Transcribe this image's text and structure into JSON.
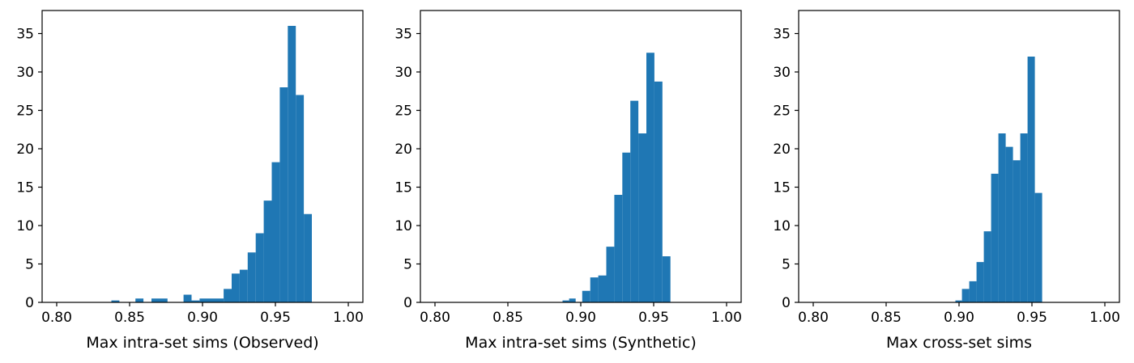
{
  "chart_data": [
    {
      "type": "bar",
      "xlabel": "Max intra-set sims (Observed)",
      "ylabel": "",
      "xlim": [
        0.79,
        1.01
      ],
      "ylim": [
        0,
        38
      ],
      "grid": false,
      "color": "#1f77b4",
      "xticks": [
        {
          "v": 0.8,
          "label": "0.80"
        },
        {
          "v": 0.85,
          "label": "0.85"
        },
        {
          "v": 0.9,
          "label": "0.90"
        },
        {
          "v": 0.95,
          "label": "0.95"
        },
        {
          "v": 1.0,
          "label": "1.00"
        }
      ],
      "yticks": [
        {
          "v": 0,
          "label": "0"
        },
        {
          "v": 5,
          "label": "5"
        },
        {
          "v": 10,
          "label": "10"
        },
        {
          "v": 15,
          "label": "15"
        },
        {
          "v": 20,
          "label": "20"
        },
        {
          "v": 25,
          "label": "25"
        },
        {
          "v": 30,
          "label": "30"
        },
        {
          "v": 35,
          "label": "35"
        }
      ],
      "bins": [
        {
          "x0": 0.8375,
          "x1": 0.843,
          "value": 0.25
        },
        {
          "x0": 0.854,
          "x1": 0.8595,
          "value": 0.5
        },
        {
          "x0": 0.865,
          "x1": 0.876,
          "value": 0.5
        },
        {
          "x0": 0.887,
          "x1": 0.8925,
          "value": 1.0
        },
        {
          "x0": 0.8925,
          "x1": 0.898,
          "value": 0.25
        },
        {
          "x0": 0.898,
          "x1": 0.9145,
          "value": 0.5
        },
        {
          "x0": 0.9145,
          "x1": 0.92,
          "value": 1.75
        },
        {
          "x0": 0.92,
          "x1": 0.9255,
          "value": 3.75
        },
        {
          "x0": 0.9255,
          "x1": 0.931,
          "value": 4.25
        },
        {
          "x0": 0.931,
          "x1": 0.9365,
          "value": 6.5
        },
        {
          "x0": 0.9365,
          "x1": 0.942,
          "value": 9.0
        },
        {
          "x0": 0.942,
          "x1": 0.9475,
          "value": 13.25
        },
        {
          "x0": 0.9475,
          "x1": 0.953,
          "value": 18.25
        },
        {
          "x0": 0.953,
          "x1": 0.9585,
          "value": 28.0
        },
        {
          "x0": 0.9585,
          "x1": 0.964,
          "value": 36.0
        },
        {
          "x0": 0.964,
          "x1": 0.9695,
          "value": 27.0
        },
        {
          "x0": 0.9695,
          "x1": 0.975,
          "value": 11.5
        }
      ]
    },
    {
      "type": "bar",
      "xlabel": "Max intra-set sims (Synthetic)",
      "ylabel": "",
      "xlim": [
        0.79,
        1.01
      ],
      "ylim": [
        0,
        38
      ],
      "grid": false,
      "color": "#1f77b4",
      "xticks": [
        {
          "v": 0.8,
          "label": "0.80"
        },
        {
          "v": 0.85,
          "label": "0.85"
        },
        {
          "v": 0.9,
          "label": "0.90"
        },
        {
          "v": 0.95,
          "label": "0.95"
        },
        {
          "v": 1.0,
          "label": "1.00"
        }
      ],
      "yticks": [
        {
          "v": 0,
          "label": "0"
        },
        {
          "v": 5,
          "label": "5"
        },
        {
          "v": 10,
          "label": "10"
        },
        {
          "v": 15,
          "label": "15"
        },
        {
          "v": 20,
          "label": "20"
        },
        {
          "v": 25,
          "label": "25"
        },
        {
          "v": 30,
          "label": "30"
        },
        {
          "v": 35,
          "label": "35"
        }
      ],
      "bins": [
        {
          "x0": 0.8875,
          "x1": 0.892,
          "value": 0.25
        },
        {
          "x0": 0.892,
          "x1": 0.8965,
          "value": 0.5
        },
        {
          "x0": 0.901,
          "x1": 0.9065,
          "value": 1.5
        },
        {
          "x0": 0.9065,
          "x1": 0.912,
          "value": 3.25
        },
        {
          "x0": 0.912,
          "x1": 0.9175,
          "value": 3.5
        },
        {
          "x0": 0.9175,
          "x1": 0.923,
          "value": 7.25
        },
        {
          "x0": 0.923,
          "x1": 0.9285,
          "value": 14.0
        },
        {
          "x0": 0.9285,
          "x1": 0.934,
          "value": 19.5
        },
        {
          "x0": 0.934,
          "x1": 0.9395,
          "value": 26.25
        },
        {
          "x0": 0.9395,
          "x1": 0.945,
          "value": 22.0
        },
        {
          "x0": 0.945,
          "x1": 0.9505,
          "value": 32.5
        },
        {
          "x0": 0.9505,
          "x1": 0.956,
          "value": 28.75
        },
        {
          "x0": 0.956,
          "x1": 0.9615,
          "value": 6.0
        }
      ]
    },
    {
      "type": "bar",
      "xlabel": "Max cross-set sims",
      "ylabel": "",
      "xlim": [
        0.79,
        1.01
      ],
      "ylim": [
        0,
        38
      ],
      "grid": false,
      "color": "#1f77b4",
      "xticks": [
        {
          "v": 0.8,
          "label": "0.80"
        },
        {
          "v": 0.85,
          "label": "0.85"
        },
        {
          "v": 0.9,
          "label": "0.90"
        },
        {
          "v": 0.95,
          "label": "0.95"
        },
        {
          "v": 1.0,
          "label": "1.00"
        }
      ],
      "yticks": [
        {
          "v": 0,
          "label": "0"
        },
        {
          "v": 5,
          "label": "5"
        },
        {
          "v": 10,
          "label": "10"
        },
        {
          "v": 15,
          "label": "15"
        },
        {
          "v": 20,
          "label": "20"
        },
        {
          "v": 25,
          "label": "25"
        },
        {
          "v": 30,
          "label": "30"
        },
        {
          "v": 35,
          "label": "35"
        }
      ],
      "bins": [
        {
          "x0": 0.8975,
          "x1": 0.902,
          "value": 0.25
        },
        {
          "x0": 0.902,
          "x1": 0.907,
          "value": 1.75
        },
        {
          "x0": 0.907,
          "x1": 0.912,
          "value": 2.75
        },
        {
          "x0": 0.912,
          "x1": 0.917,
          "value": 5.25
        },
        {
          "x0": 0.917,
          "x1": 0.922,
          "value": 9.25
        },
        {
          "x0": 0.922,
          "x1": 0.927,
          "value": 16.75
        },
        {
          "x0": 0.927,
          "x1": 0.932,
          "value": 22.0
        },
        {
          "x0": 0.932,
          "x1": 0.937,
          "value": 20.25
        },
        {
          "x0": 0.937,
          "x1": 0.942,
          "value": 18.5
        },
        {
          "x0": 0.942,
          "x1": 0.947,
          "value": 22.0
        },
        {
          "x0": 0.947,
          "x1": 0.952,
          "value": 32.0
        },
        {
          "x0": 0.952,
          "x1": 0.957,
          "value": 14.25
        }
      ]
    }
  ]
}
